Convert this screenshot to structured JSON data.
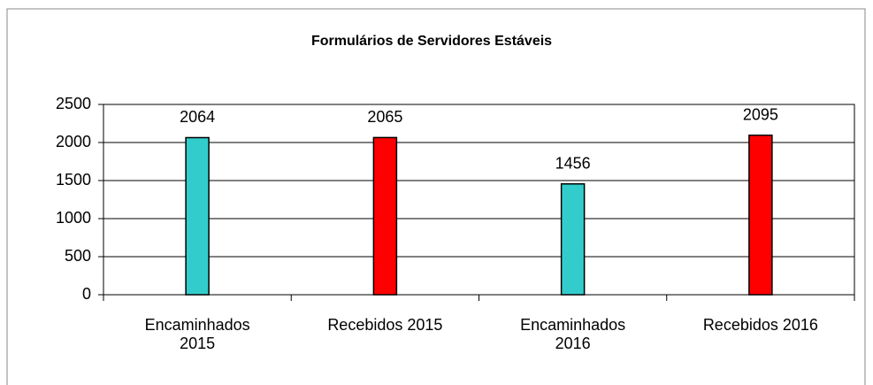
{
  "chart_data": {
    "type": "bar",
    "title": "Formulários de Servidores Estáveis",
    "categories": [
      "Encaminhados 2015",
      "Recebidos 2015",
      "Encaminhados 2016",
      "Recebidos 2016"
    ],
    "values": [
      2064,
      2065,
      1456,
      2095
    ],
    "colors": [
      "#33cccc",
      "#ff0000",
      "#33cccc",
      "#ff0000"
    ],
    "ylim": [
      0,
      2500
    ],
    "yticks": [
      0,
      500,
      1000,
      1500,
      2000,
      2500
    ],
    "grid": true
  }
}
